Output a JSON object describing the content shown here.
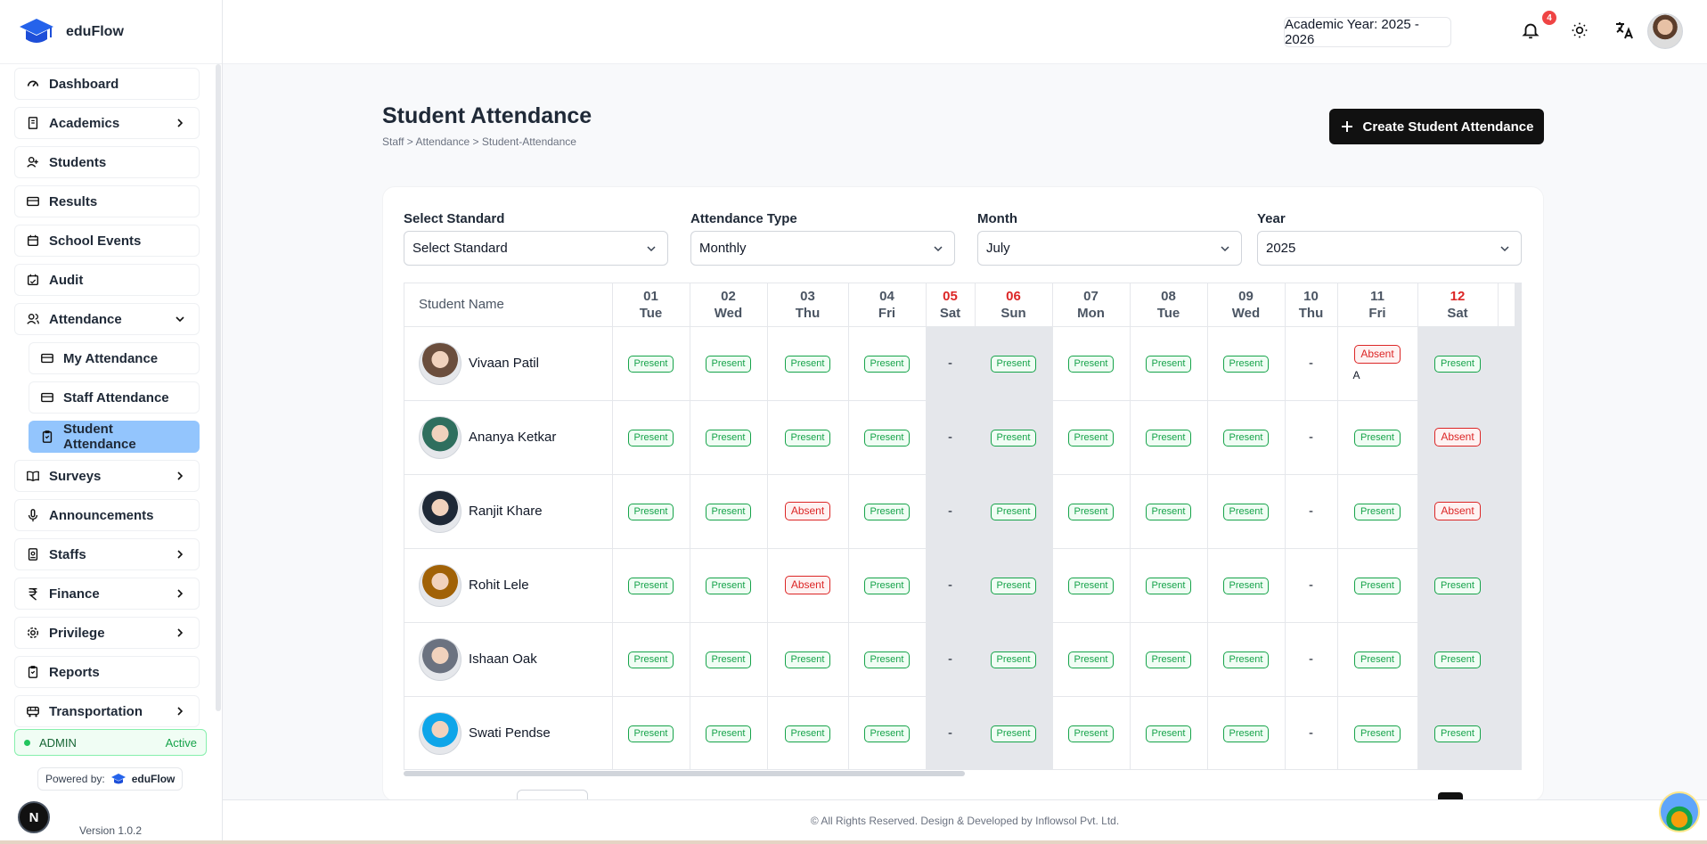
{
  "app": {
    "name": "eduFlow",
    "version": "Version 1.0.2",
    "powered_by": "Powered by:",
    "powered_name": "eduFlow"
  },
  "sidebar": {
    "items": [
      {
        "label": "Dashboard",
        "icon": "gauge-icon"
      },
      {
        "label": "Academics",
        "icon": "book-icon"
      },
      {
        "label": "Students",
        "icon": "user-plus-icon"
      },
      {
        "label": "Results",
        "icon": "card-icon"
      },
      {
        "label": "School Events",
        "icon": "calendar-icon"
      },
      {
        "label": "Audit",
        "icon": "calendar-check-icon"
      },
      {
        "label": "Attendance",
        "icon": "users-icon"
      },
      {
        "label": "My Attendance",
        "icon": "card-icon"
      },
      {
        "label": "Staff Attendance",
        "icon": "card-icon"
      },
      {
        "label": "Student Attendance",
        "icon": "clipboard-icon"
      },
      {
        "label": "Surveys",
        "icon": "book-open-icon"
      },
      {
        "label": "Announcements",
        "icon": "mic-icon"
      },
      {
        "label": "Staffs",
        "icon": "badge-icon"
      },
      {
        "label": "Finance",
        "icon": "rupee-icon"
      },
      {
        "label": "Privilege",
        "icon": "gear-icon"
      },
      {
        "label": "Reports",
        "icon": "clipboard-icon"
      },
      {
        "label": "Transportation",
        "icon": "bus-icon"
      }
    ],
    "role": "ADMIN",
    "role_status": "Active"
  },
  "topbar": {
    "academic_year": "Academic Year: 2025 - 2026",
    "notification_count": "4",
    "accent": "#ef4444"
  },
  "page": {
    "title": "Student Attendance",
    "breadcrumb": "Staff > Attendance > Student-Attendance",
    "create_button": "Create Student Attendance"
  },
  "filters": {
    "standard": {
      "label": "Select Standard",
      "value": "Select Standard"
    },
    "type": {
      "label": "Attendance Type",
      "value": "Monthly"
    },
    "month": {
      "label": "Month",
      "value": "July"
    },
    "year": {
      "label": "Year",
      "value": "2025"
    }
  },
  "table": {
    "name_header": "Student Name",
    "days": [
      {
        "d": "01",
        "w": "Tue",
        "red": false,
        "weekend": false
      },
      {
        "d": "02",
        "w": "Wed",
        "red": false,
        "weekend": false
      },
      {
        "d": "03",
        "w": "Thu",
        "red": false,
        "weekend": false
      },
      {
        "d": "04",
        "w": "Fri",
        "red": false,
        "weekend": false
      },
      {
        "d": "05",
        "w": "Sat",
        "red": true,
        "weekend": true
      },
      {
        "d": "06",
        "w": "Sun",
        "red": true,
        "weekend": true
      },
      {
        "d": "07",
        "w": "Mon",
        "red": false,
        "weekend": false
      },
      {
        "d": "08",
        "w": "Tue",
        "red": false,
        "weekend": false
      },
      {
        "d": "09",
        "w": "Wed",
        "red": false,
        "weekend": false
      },
      {
        "d": "10",
        "w": "Thu",
        "red": false,
        "weekend": false
      },
      {
        "d": "11",
        "w": "Fri",
        "red": false,
        "weekend": false
      },
      {
        "d": "12",
        "w": "Sat",
        "red": true,
        "weekend": true
      }
    ],
    "present": "Present",
    "absent": "Absent",
    "dash": "-",
    "rows": [
      {
        "name": "Vivaan Patil",
        "cells": [
          "P",
          "P",
          "P",
          "P",
          "-",
          "P",
          "P",
          "P",
          "P",
          "-",
          "A*",
          "P"
        ],
        "note": "A"
      },
      {
        "name": "Ananya Ketkar",
        "cells": [
          "P",
          "P",
          "P",
          "P",
          "-",
          "P",
          "P",
          "P",
          "P",
          "-",
          "P",
          "A"
        ]
      },
      {
        "name": "Ranjit Khare",
        "cells": [
          "P",
          "P",
          "A",
          "P",
          "-",
          "P",
          "P",
          "P",
          "P",
          "-",
          "P",
          "A"
        ]
      },
      {
        "name": "Rohit Lele",
        "cells": [
          "P",
          "P",
          "A",
          "P",
          "-",
          "P",
          "P",
          "P",
          "P",
          "-",
          "P",
          "P"
        ]
      },
      {
        "name": "Ishaan Oak",
        "cells": [
          "P",
          "P",
          "P",
          "P",
          "-",
          "P",
          "P",
          "P",
          "P",
          "-",
          "P",
          "P"
        ]
      },
      {
        "name": "Swati Pendse",
        "cells": [
          "P",
          "P",
          "P",
          "P",
          "-",
          "P",
          "P",
          "P",
          "P",
          "-",
          "P",
          "P"
        ]
      }
    ]
  },
  "footer": "© All Rights Reserved. Design & Developed by Inflowsol Pvt. Ltd."
}
